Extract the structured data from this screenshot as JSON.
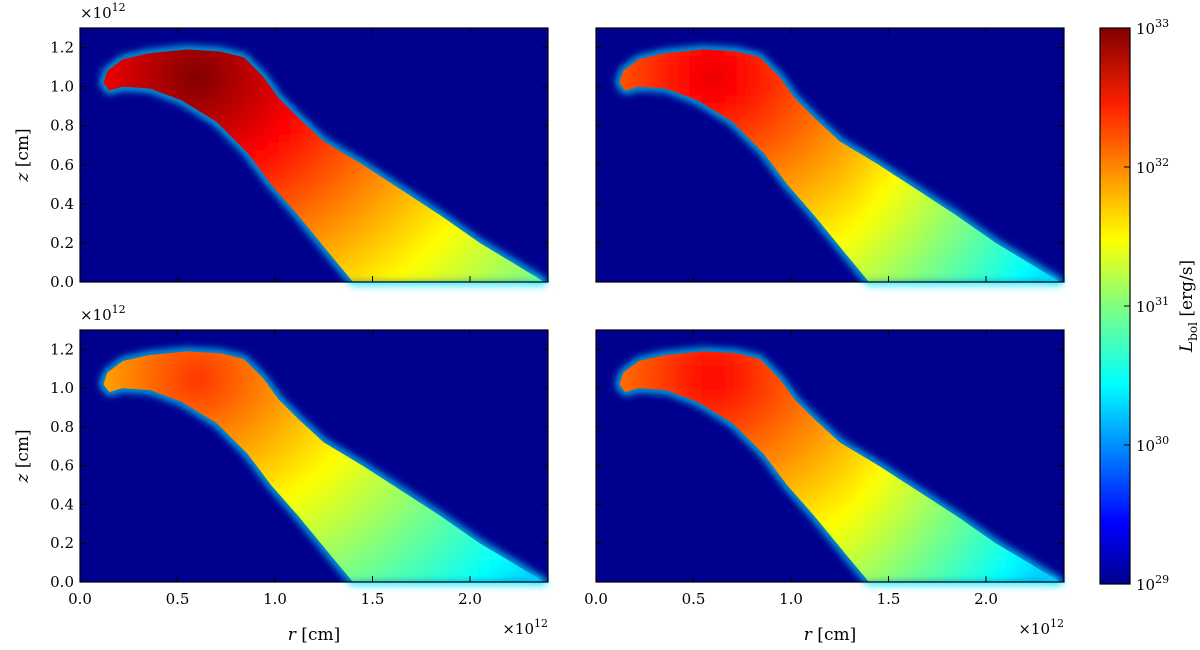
{
  "figure": {
    "panels": [
      {
        "id": "top-left"
      },
      {
        "id": "top-right"
      },
      {
        "id": "bottom-left"
      },
      {
        "id": "bottom-right"
      }
    ]
  },
  "chart_data": {
    "type": "heatmap",
    "layout": "2x2 panels sharing axes",
    "xlabel_var": "r",
    "xlabel_unit": " [cm]",
    "ylabel_var": "z",
    "ylabel_unit": " [cm]",
    "xlim": [
      0.0,
      2.4
    ],
    "ylim": [
      0.0,
      1.3
    ],
    "x_ticks": [
      0.0,
      0.5,
      1.0,
      1.5,
      2.0
    ],
    "x_tick_labels": [
      "0.0",
      "0.5",
      "1.0",
      "1.5",
      "2.0"
    ],
    "y_ticks": [
      0.0,
      0.2,
      0.4,
      0.6,
      0.8,
      1.0,
      1.2
    ],
    "y_tick_labels": [
      "0.0",
      "0.2",
      "0.4",
      "0.6",
      "0.8",
      "1.0",
      "1.2"
    ],
    "axis_multiplier": {
      "base": "×10",
      "exponent": "12"
    },
    "background_color": "#00008f",
    "colorbar": {
      "label_main": "L",
      "label_sub": "bol",
      "label_unit": " [erg/s]",
      "scale": "log",
      "range": [
        1e+29,
        1e+33
      ],
      "tick_base": "10",
      "tick_exponents": [
        "29",
        "30",
        "31",
        "32",
        "33"
      ],
      "colormap": "jet",
      "colors": [
        "#00008f",
        "#0000ff",
        "#0080ff",
        "#00ffff",
        "#80ff80",
        "#ffff00",
        "#ff8000",
        "#ff0000",
        "#800000"
      ]
    },
    "panel_peak_log_luminosity": [
      33.0,
      32.6,
      32.3,
      32.5
    ]
  }
}
